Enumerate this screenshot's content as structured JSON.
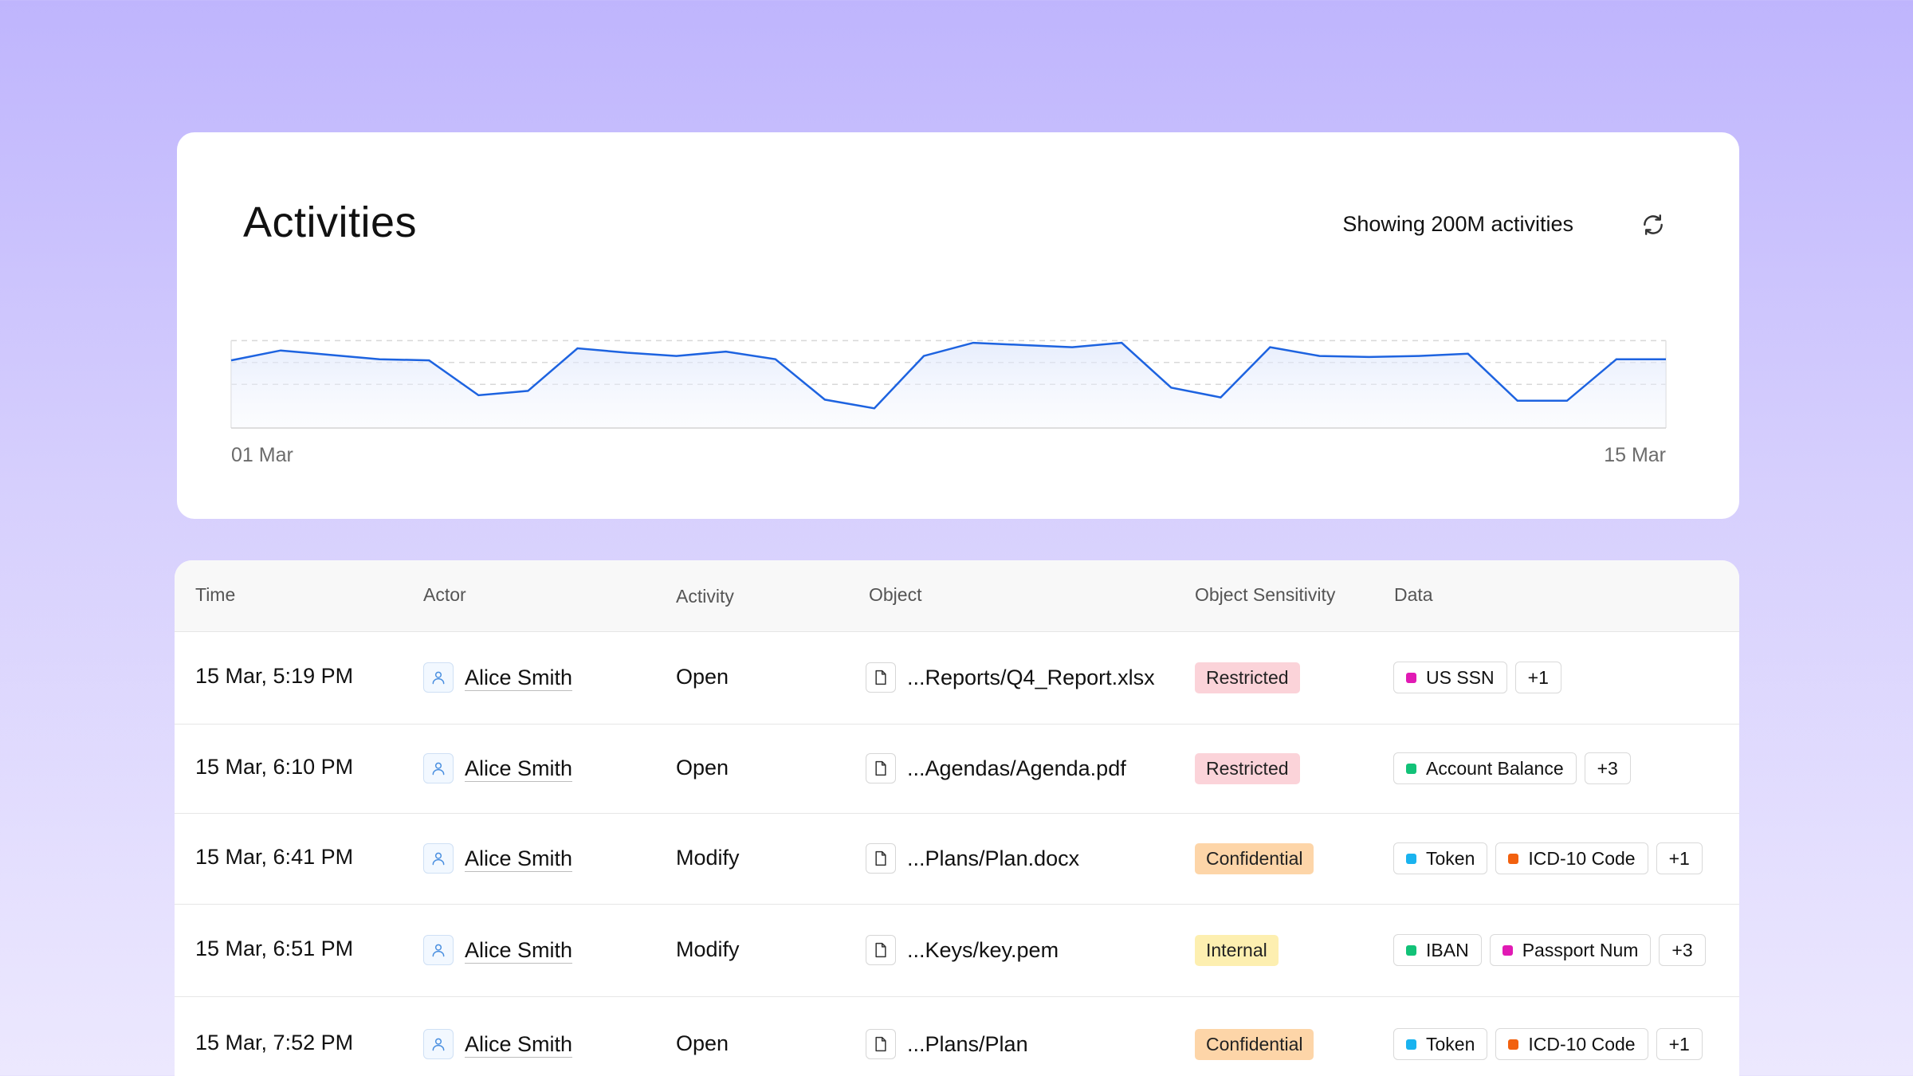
{
  "header": {
    "title": "Activities",
    "showing": "Showing 200M activities",
    "refresh_icon": "refresh-icon"
  },
  "chart_data": {
    "type": "area",
    "x_start_label": "01 Mar",
    "x_end_label": "15 Mar",
    "values": [
      62,
      71,
      67,
      63,
      62,
      30,
      34,
      73,
      69,
      66,
      70,
      63,
      26,
      18,
      66,
      78,
      76,
      74,
      78,
      37,
      28,
      74,
      66,
      65,
      66,
      68,
      25,
      25,
      63,
      63
    ],
    "ylim": [
      0,
      100
    ],
    "grid": "dashed",
    "line_color": "#1d63e0"
  },
  "table": {
    "headers": {
      "time": "Time",
      "actor": "Actor",
      "activity": "Activity",
      "object": "Object",
      "sensitivity": "Object Sensitivity",
      "data": "Data"
    },
    "rows": [
      {
        "time": "15 Mar, 5:19 PM",
        "actor": "Alice Smith",
        "activity": "Open",
        "object": "...Reports/Q4_Report.xlsx",
        "sensitivity": {
          "label": "Restricted",
          "color": "#fbd3d9"
        },
        "tags": [
          {
            "label": "US SSN",
            "color": "#e11ab4"
          }
        ],
        "more": "+1"
      },
      {
        "time": "15 Mar, 6:10 PM",
        "actor": "Alice Smith",
        "activity": "Open",
        "object": "...Agendas/Agenda.pdf",
        "sensitivity": {
          "label": "Restricted",
          "color": "#fbd3d9"
        },
        "tags": [
          {
            "label": "Account Balance",
            "color": "#12c278"
          }
        ],
        "more": "+3"
      },
      {
        "time": "15 Mar, 6:41 PM",
        "actor": "Alice Smith",
        "activity": "Modify",
        "object": "...Plans/Plan.docx",
        "sensitivity": {
          "label": "Confidential",
          "color": "#fdd5a8"
        },
        "tags": [
          {
            "label": "Token",
            "color": "#1ab3ef"
          },
          {
            "label": "ICD-10 Code",
            "color": "#f2610f"
          }
        ],
        "more": "+1"
      },
      {
        "time": "15 Mar, 6:51 PM",
        "actor": "Alice Smith",
        "activity": "Modify",
        "object": "...Keys/key.pem",
        "sensitivity": {
          "label": "Internal",
          "color": "#fdefb0"
        },
        "tags": [
          {
            "label": "IBAN",
            "color": "#12c278"
          },
          {
            "label": "Passport Num",
            "color": "#e11ab4"
          }
        ],
        "more": "+3"
      },
      {
        "time": "15 Mar, 7:52 PM",
        "actor": "Alice Smith",
        "activity": "Open",
        "object": "...Plans/Plan",
        "sensitivity": {
          "label": "Confidential",
          "color": "#fdd5a8"
        },
        "tags": [
          {
            "label": "Token",
            "color": "#1ab3ef"
          },
          {
            "label": "ICD-10 Code",
            "color": "#f2610f"
          }
        ],
        "more": "+1"
      }
    ]
  }
}
